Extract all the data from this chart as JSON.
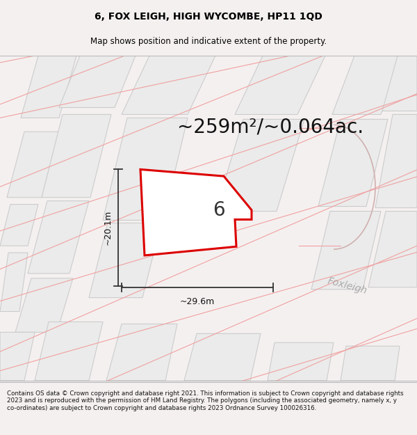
{
  "title": "6, FOX LEIGH, HIGH WYCOMBE, HP11 1QD",
  "subtitle": "Map shows position and indicative extent of the property.",
  "area_text": "~259m²/~0.064ac.",
  "width_label": "~29.6m",
  "height_label": "~20.1m",
  "number_label": "6",
  "street_label": "Foxleigh",
  "footer": "Contains OS data © Crown copyright and database right 2021. This information is subject to Crown copyright and database rights 2023 and is reproduced with the permission of HM Land Registry. The polygons (including the associated geometry, namely x, y co-ordinates) are subject to Crown copyright and database rights 2023 Ordnance Survey 100026316.",
  "bg_color": "#f5f0f0",
  "map_bg": "#f7f4f4",
  "plot_color": "#dd0000",
  "building_fc": "#ebebeb",
  "building_ec": "#cccccc",
  "pink_ec": "#f0a0a0",
  "pink_fc": "#faf5f5",
  "fig_width": 6.0,
  "fig_height": 6.25,
  "title_fontsize": 10,
  "subtitle_fontsize": 8.5,
  "area_fontsize": 20,
  "label_fontsize": 9,
  "number_fontsize": 20,
  "street_fontsize": 10
}
